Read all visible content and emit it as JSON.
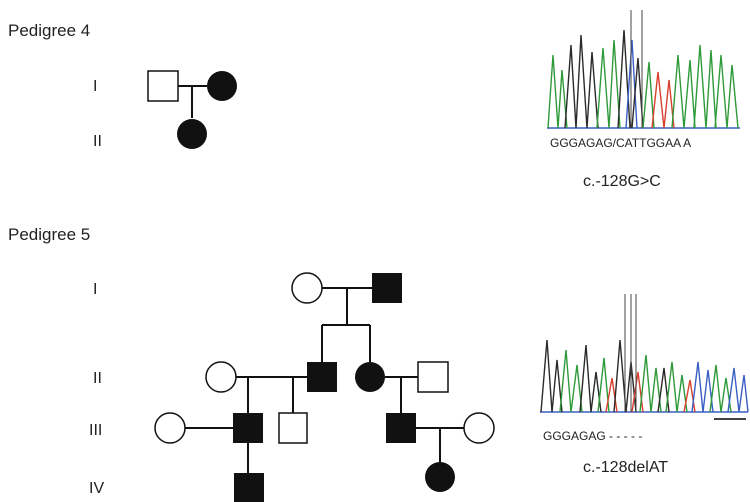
{
  "pedigree4": {
    "title": "Pedigree 4",
    "generations": [
      "I",
      "II"
    ],
    "sequence_text": "GGGAGAG/CATTGGAA A",
    "mutation": "c.-128G>C"
  },
  "pedigree5": {
    "title": "Pedigree 5",
    "generations": [
      "I",
      "II",
      "III",
      "IV"
    ],
    "sequence_text": "GGGAGAG - - - - -",
    "mutation": "c.-128delAT"
  },
  "colors": {
    "affected": "#111111",
    "unaffected": "#ffffff",
    "trace_black": "#2a2a2a",
    "trace_green": "#2f9a3a",
    "trace_red": "#d9402f",
    "trace_blue": "#3a5fc4"
  }
}
